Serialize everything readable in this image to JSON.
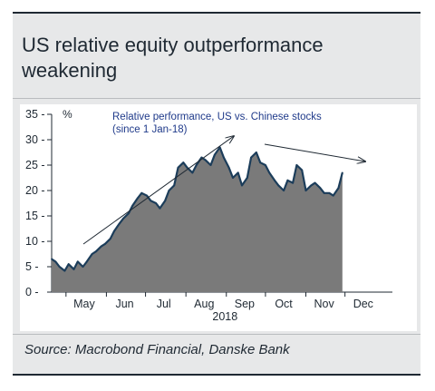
{
  "title": "US relative equity outperformance weakening",
  "source": "Source: Macrobond Financial, Danske Bank",
  "colors": {
    "area_fill": "#7a7a7a",
    "line": "#1c3d5a",
    "text": "#1f2933",
    "frame": "#e7e8e9"
  },
  "chart_data": {
    "type": "area",
    "unit_label": "%",
    "annotation": "Relative performance, US vs. Chinese stocks (since 1 Jan-18)",
    "year_label": "2018",
    "x_ticks": [
      "May",
      "Jun",
      "Jul",
      "Aug",
      "Sep",
      "Oct",
      "Nov",
      "Dec"
    ],
    "y_ticks": [
      "35",
      "30",
      "25",
      "20",
      "15",
      "10",
      "5",
      "0"
    ],
    "ylim": [
      0,
      35
    ],
    "xlim": [
      "2018-04-20",
      "2018-12-20"
    ],
    "grid": false,
    "series": [
      {
        "x": [
          "2018-04-20",
          "2018-04-23",
          "2018-04-26",
          "2018-04-30",
          "2018-05-03",
          "2018-05-07",
          "2018-05-10",
          "2018-05-14",
          "2018-05-17",
          "2018-05-21",
          "2018-05-24",
          "2018-05-28",
          "2018-05-31",
          "2018-06-04",
          "2018-06-07",
          "2018-06-11",
          "2018-06-14",
          "2018-06-18",
          "2018-06-21",
          "2018-06-25",
          "2018-06-28",
          "2018-07-02",
          "2018-07-05",
          "2018-07-09",
          "2018-07-12",
          "2018-07-16",
          "2018-07-19",
          "2018-07-23",
          "2018-07-26",
          "2018-07-30",
          "2018-08-02",
          "2018-08-06",
          "2018-08-09",
          "2018-08-13",
          "2018-08-16",
          "2018-08-20",
          "2018-08-23",
          "2018-08-27",
          "2018-08-30",
          "2018-09-03",
          "2018-09-06",
          "2018-09-10",
          "2018-09-13",
          "2018-09-17",
          "2018-09-20",
          "2018-09-24",
          "2018-09-27",
          "2018-10-01",
          "2018-10-04",
          "2018-10-08",
          "2018-10-11",
          "2018-10-15",
          "2018-10-18",
          "2018-10-22",
          "2018-10-25",
          "2018-10-29",
          "2018-11-01",
          "2018-11-05",
          "2018-11-08",
          "2018-11-12",
          "2018-11-15",
          "2018-11-19",
          "2018-11-22",
          "2018-11-26",
          "2018-11-29"
        ],
        "y": [
          6.5,
          6.0,
          5.0,
          4.2,
          5.5,
          4.5,
          6.0,
          5.0,
          6.0,
          7.5,
          8.0,
          9.0,
          9.5,
          10.5,
          12.0,
          13.5,
          14.5,
          15.5,
          17.0,
          18.5,
          19.5,
          19.0,
          18.0,
          17.5,
          16.5,
          18.0,
          20.0,
          21.0,
          24.5,
          25.5,
          24.5,
          23.5,
          25.0,
          26.5,
          26.0,
          25.0,
          27.0,
          28.5,
          26.5,
          24.5,
          22.5,
          23.5,
          21.0,
          22.5,
          26.5,
          27.5,
          25.5,
          25.0,
          23.5,
          22.0,
          21.0,
          20.0,
          22.0,
          21.5,
          25.0,
          24.0,
          20.0,
          21.0,
          21.5,
          20.5,
          19.5,
          19.5,
          19.0,
          20.5,
          23.5
        ]
      }
    ]
  }
}
